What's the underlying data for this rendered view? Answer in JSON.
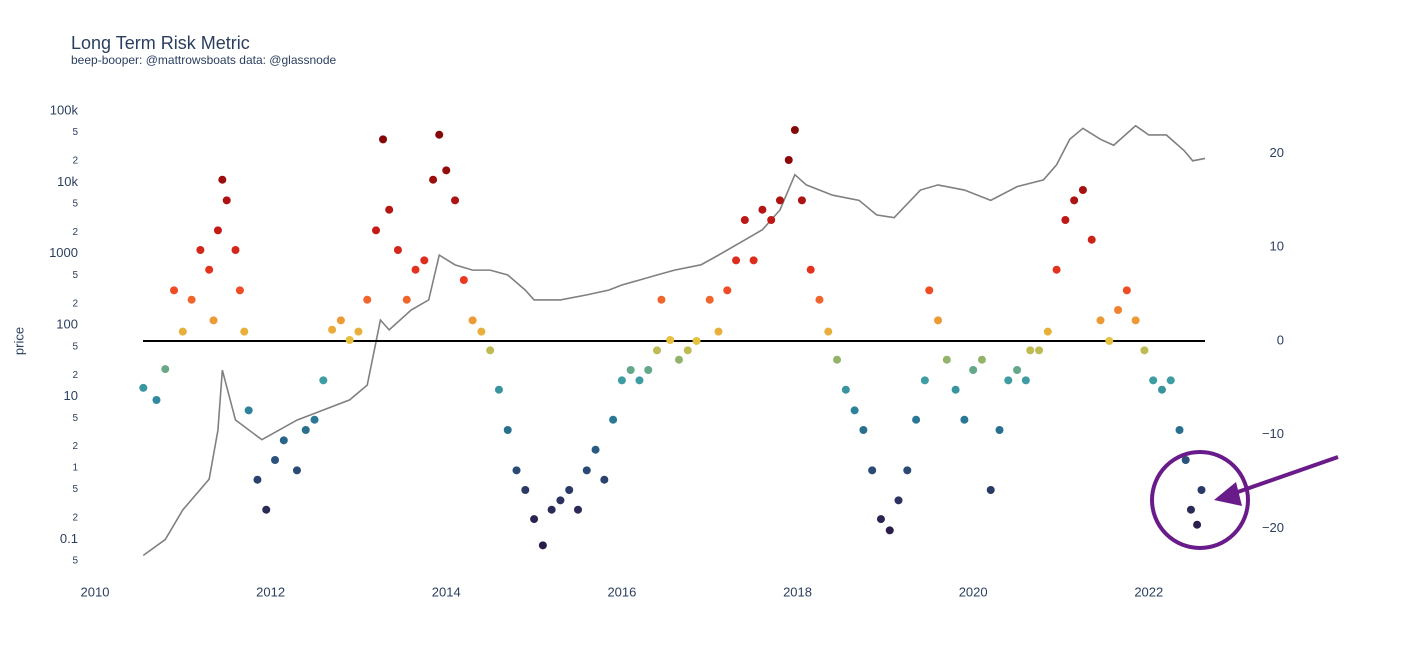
{
  "chart_data": {
    "type": "scatter",
    "title": "Long Term Risk Metric",
    "subtitle": "beep-booper: @mattrowsboats data: @glassnode",
    "y_label": "price",
    "ylog": true,
    "xlim": [
      2010,
      2022.64
    ],
    "xticks": [
      2010,
      2012,
      2014,
      2016,
      2018,
      2020,
      2022
    ],
    "ylim": [
      0.044,
      142000
    ],
    "yticks": [
      {
        "value": 100000,
        "label": "100k"
      },
      {
        "value": 50000,
        "label": "5"
      },
      {
        "value": 20000,
        "label": "2"
      },
      {
        "value": 10000,
        "label": "10k"
      },
      {
        "value": 5000,
        "label": "5"
      },
      {
        "value": 2000,
        "label": "2"
      },
      1000,
      {
        "value": 500,
        "label": "5"
      },
      {
        "value": 200,
        "label": "2"
      },
      100,
      {
        "value": 50,
        "label": "5"
      },
      {
        "value": 20,
        "label": "2"
      },
      10,
      {
        "value": 5,
        "label": "5"
      },
      {
        "value": 2,
        "label": "2"
      },
      1,
      {
        "value": 0.5,
        "label": "5"
      },
      {
        "value": 0.2,
        "label": "2"
      },
      0.1,
      {
        "value": 0.05,
        "label": "5"
      }
    ],
    "y2lim": [
      -23.9,
      25.7
    ],
    "y2ticks": [
      20,
      10,
      0,
      {
        "value": -10,
        "label": "−10"
      },
      {
        "value": -20,
        "label": "−20"
      }
    ],
    "reference_line": {
      "value": 0,
      "axis": "y2",
      "color": "#000000"
    },
    "colorscale": [
      [
        -20,
        "#2b1d4a"
      ],
      [
        -13,
        "#2a4f7a"
      ],
      [
        -8,
        "#2b7c98"
      ],
      [
        -4,
        "#3f9ea3"
      ],
      [
        -1.5,
        "#a9b85c"
      ],
      [
        0,
        "#e6c13f"
      ],
      [
        3,
        "#f08a33"
      ],
      [
        6,
        "#ef3b22"
      ],
      [
        12,
        "#c41a18"
      ],
      [
        20,
        "#850808"
      ]
    ],
    "series": [
      {
        "type": "line",
        "color": "#808080",
        "x": [
          2010.55,
          2010.8,
          2011.0,
          2011.3,
          2011.4,
          2011.45,
          2011.6,
          2011.9,
          2012.3,
          2012.6,
          2012.9,
          2013.1,
          2013.25,
          2013.35,
          2013.6,
          2013.8,
          2013.92,
          2014.1,
          2014.3,
          2014.5,
          2014.7,
          2014.9,
          2015.0,
          2015.3,
          2015.6,
          2015.85,
          2016.0,
          2016.4,
          2016.6,
          2016.9,
          2017.1,
          2017.4,
          2017.6,
          2017.8,
          2017.97,
          2018.1,
          2018.4,
          2018.7,
          2018.9,
          2019.1,
          2019.4,
          2019.6,
          2019.9,
          2020.2,
          2020.5,
          2020.8,
          2020.95,
          2021.1,
          2021.25,
          2021.45,
          2021.6,
          2021.85,
          2022.0,
          2022.2,
          2022.4,
          2022.5,
          2022.64
        ],
        "values": [
          0.06,
          0.1,
          0.26,
          0.7,
          3.4,
          23.5,
          4.7,
          2.5,
          4.7,
          6.5,
          9,
          14.5,
          118,
          86,
          163,
          226,
          957,
          700,
          590,
          590,
          505,
          310,
          226,
          226,
          266,
          310,
          365,
          505,
          590,
          700,
          957,
          1560,
          2170,
          4100,
          12800,
          9200,
          6600,
          5600,
          3500,
          3200,
          7800,
          9200,
          7800,
          5600,
          8700,
          10800,
          17600,
          40000,
          57000,
          40000,
          33000,
          62000,
          46000,
          46000,
          28000,
          20000,
          21600
        ]
      },
      {
        "type": "scatter",
        "axis": "y2",
        "x": [
          2010.55,
          2010.7,
          2010.8,
          2010.9,
          2011.0,
          2011.1,
          2011.2,
          2011.3,
          2011.35,
          2011.4,
          2011.45,
          2011.5,
          2011.6,
          2011.65,
          2011.7,
          2011.75,
          2011.85,
          2011.95,
          2012.05,
          2012.15,
          2012.3,
          2012.4,
          2012.5,
          2012.6,
          2012.7,
          2012.8,
          2012.9,
          2013.0,
          2013.1,
          2013.2,
          2013.28,
          2013.35,
          2013.45,
          2013.55,
          2013.65,
          2013.75,
          2013.85,
          2013.92,
          2014.0,
          2014.1,
          2014.2,
          2014.3,
          2014.4,
          2014.5,
          2014.6,
          2014.7,
          2014.8,
          2014.9,
          2015.0,
          2015.1,
          2015.2,
          2015.3,
          2015.4,
          2015.5,
          2015.6,
          2015.7,
          2015.8,
          2015.9,
          2016.0,
          2016.1,
          2016.2,
          2016.3,
          2016.4,
          2016.45,
          2016.55,
          2016.65,
          2016.75,
          2016.85,
          2017.0,
          2017.1,
          2017.2,
          2017.3,
          2017.4,
          2017.5,
          2017.6,
          2017.7,
          2017.8,
          2017.9,
          2017.97,
          2018.05,
          2018.15,
          2018.25,
          2018.35,
          2018.45,
          2018.55,
          2018.65,
          2018.75,
          2018.85,
          2018.95,
          2019.05,
          2019.15,
          2019.25,
          2019.35,
          2019.45,
          2019.5,
          2019.6,
          2019.7,
          2019.8,
          2019.9,
          2020.0,
          2020.1,
          2020.2,
          2020.3,
          2020.4,
          2020.5,
          2020.6,
          2020.65,
          2020.75,
          2020.85,
          2020.95,
          2021.05,
          2021.15,
          2021.25,
          2021.35,
          2021.45,
          2021.55,
          2021.65,
          2021.75,
          2021.85,
          2021.95,
          2022.05,
          2022.15,
          2022.25,
          2022.35,
          2022.42,
          2022.48,
          2022.55,
          2022.6
        ],
        "values": [
          -5,
          -6.3,
          -3,
          5.4,
          1,
          4.4,
          9.7,
          7.6,
          2.2,
          11.8,
          17.2,
          15,
          9.7,
          5.4,
          1,
          -7.4,
          -14.8,
          -18,
          -12.7,
          -10.6,
          -13.8,
          -9.5,
          -8.4,
          -4.2,
          1.2,
          2.2,
          0.1,
          1,
          4.4,
          11.8,
          21.5,
          14,
          9.7,
          4.4,
          7.6,
          8.6,
          17.2,
          22,
          18.2,
          15,
          6.5,
          2.2,
          1,
          -1,
          -5.2,
          -9.5,
          -13.8,
          -15.9,
          -19,
          -21.8,
          -18,
          -17,
          -15.9,
          -18,
          -13.8,
          -11.6,
          -14.8,
          -8.4,
          -4.2,
          -3.1,
          -4.2,
          -3.1,
          -1,
          4.4,
          0.1,
          -2,
          -1,
          0,
          4.4,
          1,
          5.4,
          8.6,
          12.9,
          8.6,
          14,
          12.9,
          15,
          19.3,
          22.5,
          15,
          7.6,
          4.4,
          1,
          -2,
          -5.2,
          -7.4,
          -9.5,
          -13.8,
          -19,
          -20.2,
          -17,
          -13.8,
          -8.4,
          -4.2,
          5.4,
          2.2,
          -2,
          -5.2,
          -8.4,
          -3.1,
          -2,
          -15.9,
          -9.5,
          -4.2,
          -3.1,
          -4.2,
          -1,
          -1,
          1,
          7.6,
          12.9,
          15,
          16.1,
          10.8,
          2.2,
          0,
          3.3,
          5.4,
          2.2,
          -1,
          -4.2,
          -5.2,
          -4.2,
          -9.5,
          -12.7,
          -18,
          -19.6,
          -15.9
        ]
      }
    ]
  }
}
